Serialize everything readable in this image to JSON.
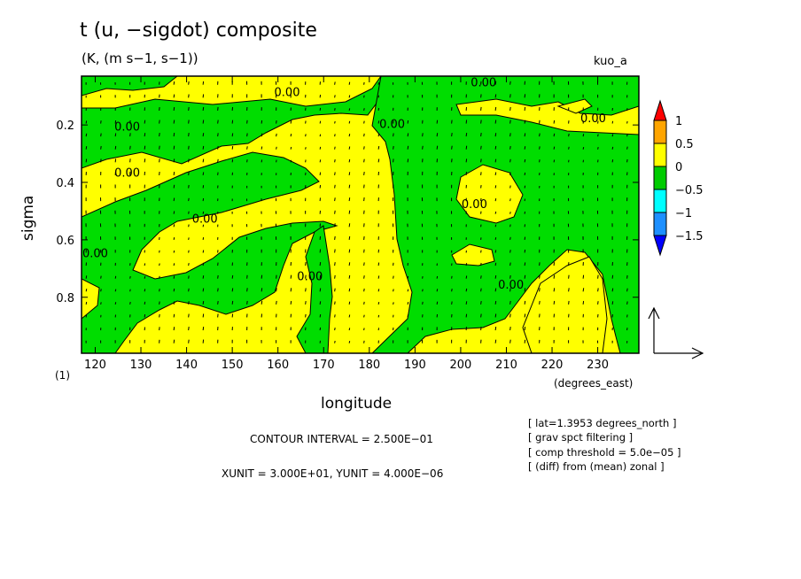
{
  "chart_data": {
    "type": "heatmap",
    "title": "t (u, −sigdot) composite",
    "subtitle": "(K, (m s−1, s−1))",
    "run_label": "kuo_a",
    "xlabel": "longitude",
    "x_units": "(degrees_east)",
    "ylabel": "sigma",
    "xlim": [
      117,
      239
    ],
    "ylim": [
      0.03,
      0.995
    ],
    "y_inverted": true,
    "x_ticks": [
      120,
      130,
      140,
      150,
      160,
      170,
      180,
      190,
      200,
      210,
      220,
      230
    ],
    "y_ticks": [
      0.2,
      0.4,
      0.6,
      0.8
    ],
    "footnote": "(1)",
    "contour_interval": "CONTOUR INTERVAL = 2.500E−01",
    "unit_scale": "XUNIT = 3.000E+01, YUNIT = 4.000E−06",
    "notes": [
      "[ lat=1.3953 degrees_north ]",
      "[ grav spct filtering ]",
      "[ comp threshold = 5.0e−05 ]",
      "[ (diff) from (mean) zonal ]"
    ],
    "contour_labels": [
      {
        "text": "0.00",
        "lon": 162,
        "sigma": 0.1
      },
      {
        "text": "0.00",
        "lon": 205,
        "sigma": 0.065
      },
      {
        "text": "0.00",
        "lon": 127,
        "sigma": 0.22
      },
      {
        "text": "0.00",
        "lon": 185,
        "sigma": 0.21
      },
      {
        "text": "0.00",
        "lon": 229,
        "sigma": 0.19
      },
      {
        "text": "0.00",
        "lon": 127,
        "sigma": 0.38
      },
      {
        "text": "0.00",
        "lon": 203,
        "sigma": 0.49
      },
      {
        "text": "0.00",
        "lon": 144,
        "sigma": 0.54
      },
      {
        "text": "0.00",
        "lon": 120,
        "sigma": 0.66
      },
      {
        "text": "0.00",
        "lon": 167,
        "sigma": 0.74
      },
      {
        "text": "0.00",
        "lon": 211,
        "sigma": 0.77
      }
    ],
    "colorbar": {
      "levels": [
        "1",
        "0.5",
        "0",
        "−0.5",
        "−1",
        "−1.5"
      ],
      "colors": [
        "#ff0000",
        "#ffa500",
        "#ffff00",
        "#00cc00",
        "#00ffff",
        "#1e90ff",
        "#0000ff"
      ]
    },
    "colors": {
      "positive": "#ffff00",
      "negative": "#00dd00",
      "contour": "#000000"
    },
    "quiver": true
  }
}
